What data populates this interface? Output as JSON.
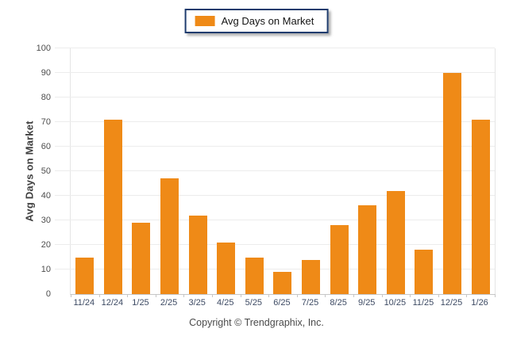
{
  "legend": {
    "label": "Avg Days on Market"
  },
  "y_axis": {
    "title": "Avg Days on Market",
    "ticks": [
      0,
      10,
      20,
      30,
      40,
      50,
      60,
      70,
      80,
      90,
      100
    ]
  },
  "footer": {
    "copyright": "Copyright © Trendgraphix, Inc."
  },
  "chart_data": {
    "type": "bar",
    "title": "",
    "categories": [
      "11/24",
      "12/24",
      "1/25",
      "2/25",
      "3/25",
      "4/25",
      "5/25",
      "6/25",
      "7/25",
      "8/25",
      "9/25",
      "10/25",
      "11/25",
      "12/25",
      "1/26"
    ],
    "series": [
      {
        "name": "Avg Days on Market",
        "values": [
          15,
          71,
          29,
          47,
          32,
          21,
          15,
          9,
          14,
          28,
          36,
          42,
          18,
          90,
          71
        ]
      }
    ],
    "xlabel": "",
    "ylabel": "Avg Days on Market",
    "ylim": [
      0,
      100
    ],
    "y_step": 10,
    "grid": true,
    "legend_position": "top-center"
  },
  "colors": {
    "bar": "#EF8A17",
    "legend_border": "#1E3C6E",
    "grid": "#ECECEC",
    "axis": "#C6C6C6",
    "y_tick_label": "#4D4D4D",
    "x_tick_label": "#3D4A63",
    "footer_text": "#4A4A4A"
  }
}
